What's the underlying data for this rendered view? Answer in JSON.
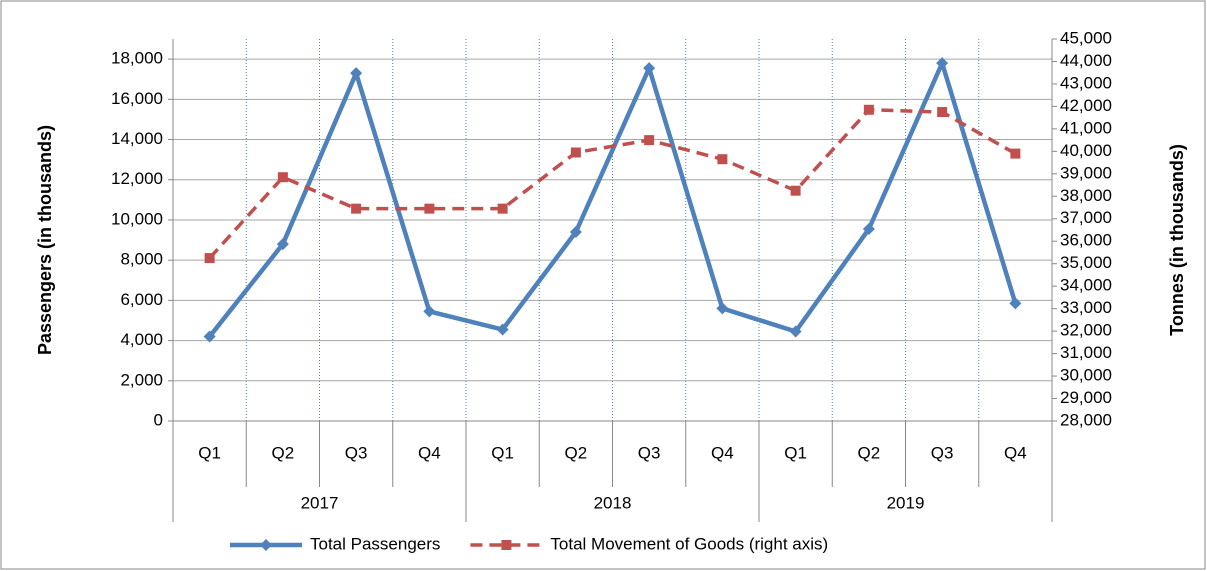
{
  "chart_data": {
    "type": "line",
    "y_label": "Passengers  (in thousands)",
    "y2_label": "Tonnes (in thousands)",
    "categories": [
      "Q1",
      "Q2",
      "Q3",
      "Q4",
      "Q1",
      "Q2",
      "Q3",
      "Q4",
      "Q1",
      "Q2",
      "Q3",
      "Q4"
    ],
    "groups": [
      "2017",
      "2018",
      "2019"
    ],
    "series": [
      {
        "name": "Total Passengers",
        "color": "#4f81bd",
        "marker": "diamond",
        "dash": false,
        "values": [
          4200,
          8800,
          17300,
          5450,
          4550,
          9400,
          17550,
          5600,
          4450,
          9550,
          17800,
          5850
        ]
      },
      {
        "name": "Total Movement of Goods (right axis)",
        "color": "#c0504d",
        "marker": "square",
        "dash": true,
        "axis": "y2",
        "values": [
          35250,
          38850,
          37450,
          37450,
          37450,
          39950,
          40500,
          39650,
          38250,
          41850,
          41750,
          39900
        ]
      }
    ],
    "ylim": [
      0,
      19000
    ],
    "yticks": [
      0,
      {
        "value": 2000,
        "label": "2,000"
      },
      {
        "value": 4000,
        "label": "4,000"
      },
      {
        "value": 6000,
        "label": "6,000"
      },
      {
        "value": 8000,
        "label": "8,000"
      },
      {
        "value": 10000,
        "label": "10,000"
      },
      {
        "value": 12000,
        "label": "12,000"
      },
      {
        "value": 14000,
        "label": "14,000"
      },
      {
        "value": 16000,
        "label": "16,000"
      },
      {
        "value": 18000,
        "label": "18,000"
      }
    ],
    "y2lim": [
      28000,
      45000
    ],
    "y2ticks": [
      {
        "value": 28000,
        "label": "28,000"
      },
      {
        "value": 29000,
        "label": "29,000"
      },
      {
        "value": 30000,
        "label": "30,000"
      },
      {
        "value": 31000,
        "label": "31,000"
      },
      {
        "value": 32000,
        "label": "32,000"
      },
      {
        "value": 33000,
        "label": "33,000"
      },
      {
        "value": 34000,
        "label": "34,000"
      },
      {
        "value": 35000,
        "label": "35,000"
      },
      {
        "value": 36000,
        "label": "36,000"
      },
      {
        "value": 37000,
        "label": "37,000"
      },
      {
        "value": 38000,
        "label": "38,000"
      },
      {
        "value": 39000,
        "label": "39,000"
      },
      {
        "value": 40000,
        "label": "40,000"
      },
      {
        "value": 41000,
        "label": "41,000"
      },
      {
        "value": 42000,
        "label": "42,000"
      },
      {
        "value": 43000,
        "label": "43,000"
      },
      {
        "value": 44000,
        "label": "44,000"
      },
      {
        "value": 45000,
        "label": "45,000"
      }
    ],
    "grid": true,
    "legend": "bottom"
  }
}
